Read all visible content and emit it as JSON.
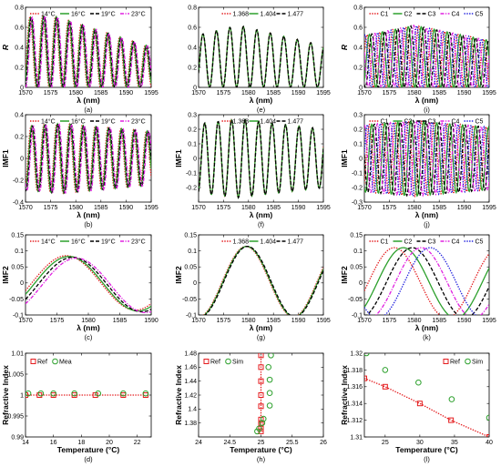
{
  "chart_data": [
    {
      "id": "a",
      "type": "line",
      "caption": "(a)",
      "xlabel": "λ (nm)",
      "ylabel": "R",
      "xlim": [
        1570,
        1595
      ],
      "ylim": [
        0,
        0.8
      ],
      "xticks": [
        1570,
        1575,
        1580,
        1585,
        1590,
        1595
      ],
      "yticks": [
        0,
        0.2,
        0.4,
        0.6,
        0.8
      ],
      "legend_position": "top",
      "series": [
        {
          "name": "14°C",
          "color": "#e41a1c",
          "dash": "dotted"
        },
        {
          "name": "16°C",
          "color": "#2ca02c",
          "dash": "solid"
        },
        {
          "name": "19°C",
          "color": "#000000",
          "dash": "dashed"
        },
        {
          "name": "23°C",
          "color": "#e020e0",
          "dash": "dashdot"
        }
      ]
    },
    {
      "id": "e",
      "type": "line",
      "caption": "(e)",
      "xlabel": "λ (nm)",
      "ylabel": "",
      "xlim": [
        1570,
        1595
      ],
      "ylim": [
        0,
        0.8
      ],
      "xticks": [
        1570,
        1575,
        1580,
        1585,
        1590,
        1595
      ],
      "yticks": [
        0,
        0.2,
        0.4,
        0.6,
        0.8
      ],
      "legend_position": "top",
      "series": [
        {
          "name": "1.368",
          "color": "#e41a1c",
          "dash": "dotted"
        },
        {
          "name": "1.404",
          "color": "#2ca02c",
          "dash": "solid"
        },
        {
          "name": "1.477",
          "color": "#000000",
          "dash": "dashed"
        }
      ]
    },
    {
      "id": "i",
      "type": "line",
      "caption": "(i)",
      "xlabel": "λ (nm)",
      "ylabel": "R",
      "xlim": [
        1570,
        1595
      ],
      "ylim": [
        0,
        0.8
      ],
      "xticks": [
        1570,
        1575,
        1580,
        1585,
        1590,
        1595
      ],
      "yticks": [
        0,
        0.2,
        0.4,
        0.6,
        0.8
      ],
      "legend_position": "top",
      "series": [
        {
          "name": "C1",
          "color": "#e41a1c",
          "dash": "dotted"
        },
        {
          "name": "C2",
          "color": "#2ca02c",
          "dash": "solid"
        },
        {
          "name": "C3",
          "color": "#000000",
          "dash": "dashed"
        },
        {
          "name": "C4",
          "color": "#e020e0",
          "dash": "dashdot"
        },
        {
          "name": "C5",
          "color": "#1f1fdd",
          "dash": "dotted"
        }
      ]
    },
    {
      "id": "b",
      "type": "line",
      "caption": "(b)",
      "xlabel": "λ (nm)",
      "ylabel": "IMF1",
      "xlim": [
        1570,
        1595
      ],
      "ylim": [
        -0.4,
        0.4
      ],
      "xticks": [
        1570,
        1575,
        1580,
        1585,
        1590,
        1595
      ],
      "yticks": [
        -0.4,
        -0.2,
        0,
        0.2,
        0.4
      ],
      "legend_position": "top",
      "series": [
        {
          "name": "14°C",
          "color": "#e41a1c",
          "dash": "dotted"
        },
        {
          "name": "16°C",
          "color": "#2ca02c",
          "dash": "solid"
        },
        {
          "name": "19°C",
          "color": "#000000",
          "dash": "dashed"
        },
        {
          "name": "23°C",
          "color": "#e020e0",
          "dash": "dashdot"
        }
      ]
    },
    {
      "id": "f",
      "type": "line",
      "caption": "(f)",
      "xlabel": "λ (nm)",
      "ylabel": "IMF1",
      "xlim": [
        1570,
        1595
      ],
      "ylim": [
        -0.3,
        0.3
      ],
      "xticks": [
        1570,
        1575,
        1580,
        1585,
        1590,
        1595
      ],
      "yticks": [
        -0.2,
        -0.1,
        0,
        0.1,
        0.2,
        0.3
      ],
      "legend_position": "top",
      "series": [
        {
          "name": "1.368",
          "color": "#e41a1c",
          "dash": "dotted"
        },
        {
          "name": "1.404",
          "color": "#2ca02c",
          "dash": "solid"
        },
        {
          "name": "1.477",
          "color": "#000000",
          "dash": "dashed"
        }
      ]
    },
    {
      "id": "j",
      "type": "line",
      "caption": "(j)",
      "xlabel": "λ (nm)",
      "ylabel": "IMF1",
      "xlim": [
        1570,
        1595
      ],
      "ylim": [
        -0.3,
        0.3
      ],
      "xticks": [
        1570,
        1575,
        1580,
        1585,
        1590,
        1595
      ],
      "yticks": [
        -0.3,
        -0.2,
        -0.1,
        0,
        0.1,
        0.2,
        0.3
      ],
      "legend_position": "top",
      "series": [
        {
          "name": "C1",
          "color": "#e41a1c",
          "dash": "dotted"
        },
        {
          "name": "C2",
          "color": "#2ca02c",
          "dash": "solid"
        },
        {
          "name": "C3",
          "color": "#000000",
          "dash": "dashed"
        },
        {
          "name": "C4",
          "color": "#e020e0",
          "dash": "dashdot"
        },
        {
          "name": "C5",
          "color": "#1f1fdd",
          "dash": "dotted"
        }
      ]
    },
    {
      "id": "c",
      "type": "line",
      "caption": "(c)",
      "xlabel": "λ (nm)",
      "ylabel": "IMF2",
      "xlim": [
        1570,
        1590
      ],
      "ylim": [
        -0.1,
        0.15
      ],
      "xticks": [
        1570,
        1575,
        1580,
        1585,
        1590
      ],
      "yticks": [
        -0.1,
        -0.05,
        0,
        0.05,
        0.1,
        0.15
      ],
      "legend_position": "top",
      "series": [
        {
          "name": "14°C",
          "color": "#e41a1c",
          "dash": "dotted"
        },
        {
          "name": "16°C",
          "color": "#2ca02c",
          "dash": "solid"
        },
        {
          "name": "19°C",
          "color": "#000000",
          "dash": "dashed"
        },
        {
          "name": "23°C",
          "color": "#e020e0",
          "dash": "dashdot"
        }
      ]
    },
    {
      "id": "g",
      "type": "line",
      "caption": "(g)",
      "xlabel": "λ (nm)",
      "ylabel": "IMF2",
      "xlim": [
        1570,
        1595
      ],
      "ylim": [
        -0.1,
        0.15
      ],
      "xticks": [
        1570,
        1575,
        1580,
        1585,
        1590,
        1595
      ],
      "yticks": [
        -0.1,
        -0.05,
        0,
        0.05,
        0.1,
        0.15
      ],
      "legend_position": "top",
      "series": [
        {
          "name": "1.368",
          "color": "#e41a1c",
          "dash": "dotted"
        },
        {
          "name": "1.404",
          "color": "#2ca02c",
          "dash": "solid"
        },
        {
          "name": "1.477",
          "color": "#000000",
          "dash": "dashed"
        }
      ]
    },
    {
      "id": "k",
      "type": "line",
      "caption": "(k)",
      "xlabel": "λ (nm)",
      "ylabel": "IMF2",
      "xlim": [
        1570,
        1595
      ],
      "ylim": [
        -0.1,
        0.15
      ],
      "xticks": [
        1570,
        1575,
        1580,
        1585,
        1590,
        1595
      ],
      "yticks": [
        -0.1,
        -0.05,
        0,
        0.05,
        0.1,
        0.15
      ],
      "legend_position": "top",
      "series": [
        {
          "name": "C1",
          "color": "#e41a1c",
          "dash": "dotted"
        },
        {
          "name": "C2",
          "color": "#2ca02c",
          "dash": "solid"
        },
        {
          "name": "C3",
          "color": "#000000",
          "dash": "dashed"
        },
        {
          "name": "C4",
          "color": "#e020e0",
          "dash": "dashdot"
        },
        {
          "name": "C5",
          "color": "#1f1fdd",
          "dash": "dotted"
        }
      ]
    },
    {
      "id": "d",
      "type": "scatter",
      "caption": "(d)",
      "xlabel": "Temperature (°C)",
      "ylabel": "Refractive Index",
      "xlim": [
        14,
        23
      ],
      "ylim": [
        0.99,
        1.01
      ],
      "xticks": [
        14,
        16,
        18,
        20,
        22
      ],
      "yticks": [
        0.99,
        0.995,
        1,
        1.005,
        1.01
      ],
      "legend_position": "top-left",
      "series": [
        {
          "name": "Ref",
          "color": "#e41a1c",
          "marker": "square",
          "line": "dotted",
          "points": [
            [
              14,
              1.0
            ],
            [
              15,
              1.0
            ],
            [
              16,
              1.0
            ],
            [
              17.5,
              1.0
            ],
            [
              19,
              1.0
            ],
            [
              21,
              1.0
            ],
            [
              22.6,
              1.0
            ]
          ]
        },
        {
          "name": "Mea",
          "color": "#2ca02c",
          "marker": "circle",
          "line": "none",
          "points": [
            [
              14.2,
              1.0004
            ],
            [
              15.1,
              1.0004
            ],
            [
              16,
              1.0004
            ],
            [
              17.5,
              1.0004
            ],
            [
              19.2,
              1.0004
            ],
            [
              21,
              1.0004
            ],
            [
              22.6,
              1.0004
            ]
          ]
        }
      ]
    },
    {
      "id": "h",
      "type": "scatter",
      "caption": "(h)",
      "xlabel": "Temperature (°C)",
      "ylabel": "Refractive Index",
      "xlim": [
        24,
        26
      ],
      "ylim": [
        1.36,
        1.48
      ],
      "xticks": [
        24,
        24.5,
        25,
        25.5,
        26
      ],
      "yticks": [
        1.38,
        1.4,
        1.42,
        1.44,
        1.46,
        1.48
      ],
      "legend_position": "top-left",
      "series": [
        {
          "name": "Ref",
          "color": "#e41a1c",
          "marker": "square",
          "line": "dotted",
          "points": [
            [
              25,
              1.368
            ],
            [
              25,
              1.372
            ],
            [
              25,
              1.38
            ],
            [
              25,
              1.385
            ],
            [
              25,
              1.404
            ],
            [
              25,
              1.42
            ],
            [
              25,
              1.44
            ],
            [
              25,
              1.46
            ],
            [
              25,
              1.477
            ]
          ]
        },
        {
          "name": "Sim",
          "color": "#2ca02c",
          "marker": "circle",
          "line": "none",
          "points": [
            [
              24.94,
              1.368
            ],
            [
              24.97,
              1.372
            ],
            [
              25.02,
              1.38
            ],
            [
              25.04,
              1.386
            ],
            [
              25.14,
              1.405
            ],
            [
              25.14,
              1.423
            ],
            [
              25.14,
              1.442
            ],
            [
              25.12,
              1.46
            ],
            [
              25.16,
              1.477
            ]
          ]
        }
      ]
    },
    {
      "id": "l",
      "type": "scatter",
      "caption": "(l)",
      "xlabel": "Temperature (°C)",
      "ylabel": "Refractive Index",
      "xlim": [
        22,
        40
      ],
      "ylim": [
        1.31,
        1.32
      ],
      "xticks": [
        25,
        30,
        35,
        40
      ],
      "yticks": [
        1.31,
        1.312,
        1.314,
        1.316,
        1.318,
        1.32
      ],
      "legend_position": "top-right",
      "series": [
        {
          "name": "Ref",
          "color": "#e41a1c",
          "marker": "square",
          "line": "dotted",
          "points": [
            [
              22,
              1.317
            ],
            [
              25,
              1.316
            ],
            [
              30,
              1.314
            ],
            [
              34.5,
              1.312
            ],
            [
              40,
              1.31
            ]
          ]
        },
        {
          "name": "Sim",
          "color": "#2ca02c",
          "marker": "circle",
          "line": "none",
          "points": [
            [
              22.3,
              1.32
            ],
            [
              25,
              1.318
            ],
            [
              29.8,
              1.3165
            ],
            [
              34.6,
              1.3145
            ],
            [
              40,
              1.3123
            ]
          ]
        }
      ]
    }
  ]
}
